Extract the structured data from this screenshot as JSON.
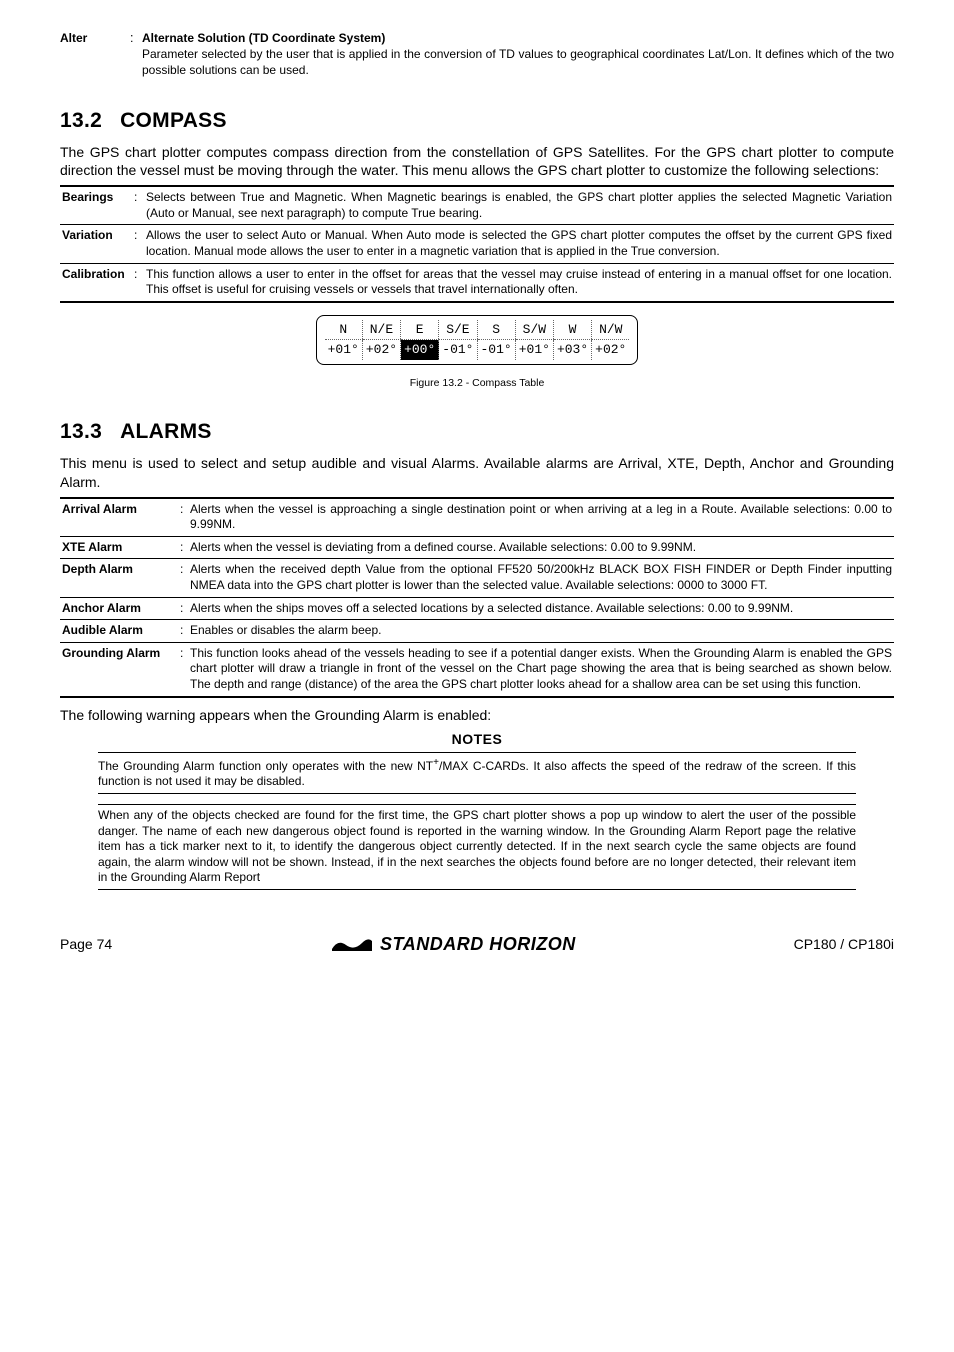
{
  "colors": {
    "text": "#000000",
    "background": "#ffffff",
    "rule": "#000000",
    "dotted": "#666666",
    "inverse_bg": "#000000",
    "inverse_fg": "#ffffff"
  },
  "alter": {
    "term": "Alter",
    "title": "Alternate Solution (TD Coordinate System)",
    "body": "Parameter selected by the user that is applied in the conversion of TD values to geographical coordinates Lat/Lon. It defines which of the two possible solutions can be used."
  },
  "s132": {
    "num": "13.2",
    "title": "COMPASS",
    "intro": "The GPS chart plotter computes compass direction from the constellation of GPS Satellites. For the GPS chart plotter to compute direction the vessel must be moving through the water. This menu allows the GPS chart plotter to customize the following selections:",
    "rows": [
      {
        "term": "Bearings",
        "body": "Selects between True and Magnetic. When Magnetic bearings is enabled, the GPS chart plotter applies the selected Magnetic Variation (Auto or Manual, see next paragraph) to compute True bearing."
      },
      {
        "term": "Variation",
        "body": "Allows the user to select Auto or Manual. When Auto mode is selected the GPS chart plotter computes the offset by the current GPS fixed location. Manual mode allows the user to enter in a magnetic variation that is applied in the True conversion."
      },
      {
        "term": "Calibration",
        "body": "This function allows a user to enter in the offset for areas that the vessel may cruise instead of entering in a manual offset for one location. This offset is useful for cruising vessels or vessels that travel internationally often."
      }
    ],
    "compass": {
      "headers": [
        "N",
        "N/E",
        "E",
        "S/E",
        "S",
        "S/W",
        "W",
        "N/W"
      ],
      "values": [
        "+01°",
        "+02°",
        "+00°",
        "-01°",
        "-01°",
        "+01°",
        "+03°",
        "+02°"
      ],
      "highlight_index": 2
    },
    "fig_caption": "Figure 13.2 -  Compass Table"
  },
  "s133": {
    "num": "13.3",
    "title": "ALARMS",
    "intro": "This menu is used to select and setup audible and visual Alarms. Available alarms are Arrival, XTE, Depth, Anchor and Grounding Alarm.",
    "rows": [
      {
        "term": "Arrival Alarm",
        "body": "Alerts when the vessel is approaching a single destination point or when arriving at a leg in a Route. Available selections: 0.00 to 9.99NM."
      },
      {
        "term": "XTE Alarm",
        "body": "Alerts when the vessel is deviating from a defined course. Available selections: 0.00 to 9.99NM."
      },
      {
        "term": "Depth Alarm",
        "body": "Alerts when the received depth Value from the optional FF520 50/200kHz BLACK BOX FISH FINDER or Depth Finder inputting NMEA data into the GPS chart plotter is lower than the selected value. Available selections: 0000 to 3000 FT."
      },
      {
        "term": "Anchor Alarm",
        "body": "Alerts when the ships moves off a selected locations by a selected distance. Available selections: 0.00 to 9.99NM."
      },
      {
        "term": "Audible Alarm",
        "body": "Enables or disables the alarm beep."
      },
      {
        "term": "Grounding Alarm",
        "body": "This function looks ahead of the vessels heading to see if a potential danger exists. When the Grounding Alarm is enabled the GPS chart plotter will draw a triangle in front of the vessel on the Chart page showing the area that is being searched as shown below. The depth and range (distance) of the area the GPS chart plotter looks ahead for a shallow area can be set using this function."
      }
    ],
    "warn_line": "The following warning appears when the Grounding Alarm is enabled:",
    "notes_title": "NOTES",
    "note1_pre": "The Grounding Alarm function only operates with the new NT",
    "note1_sup": "+",
    "note1_post": "/MAX C-CARDs. It also affects the speed of the redraw of the screen. If this function is not used it may be disabled.",
    "note2": "When any of the objects checked are found for the first time, the GPS chart plotter shows a pop up window to alert the user of the possible danger. The name of each new dangerous object found is reported in the warning window. In the Grounding Alarm Report page  the relative item has a tick marker next to it, to identify the dangerous object currently detected. If in the next search cycle the same objects are found again, the alarm window will not be shown. Instead, if in the next searches the objects found before are no longer detected, their relevant item in the Grounding Alarm Report"
  },
  "footer": {
    "page": "Page  74",
    "brand": "STANDARD HORIZON",
    "model": "CP180 / CP180i"
  }
}
